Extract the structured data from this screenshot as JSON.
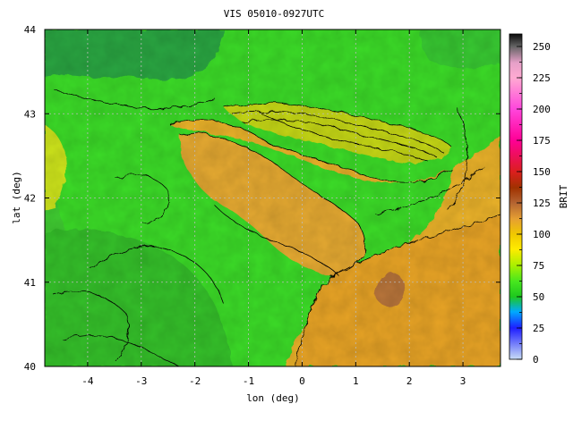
{
  "title": "VIS 05010-0927UTC",
  "xlabel": "lon (deg)",
  "ylabel": "lat (deg)",
  "colorbar_label": "BRIT",
  "chart_data": {
    "type": "heatmap",
    "title": "VIS 05010-0927UTC",
    "xlabel": "lon (deg)",
    "ylabel": "lat (deg)",
    "xlim": [
      -4.8,
      3.7
    ],
    "ylim": [
      40,
      44
    ],
    "x_ticks": [
      "-4",
      "-3",
      "-2",
      "-1",
      "0",
      "1",
      "2",
      "3"
    ],
    "x_tick_values": [
      -4,
      -3,
      -2,
      -1,
      0,
      1,
      2,
      3
    ],
    "y_ticks": [
      "40",
      "41",
      "42",
      "43",
      "44"
    ],
    "y_tick_values": [
      40,
      41,
      42,
      43,
      44
    ],
    "grid": true,
    "colorbar": {
      "label": "BRIT",
      "range": [
        0,
        260
      ],
      "ticks": [
        "0",
        "25",
        "50",
        "75",
        "100",
        "125",
        "150",
        "175",
        "200",
        "225",
        "250"
      ],
      "tick_values": [
        0,
        25,
        50,
        75,
        100,
        125,
        150,
        175,
        200,
        225,
        250
      ],
      "placement": "right",
      "colors": [
        {
          "v": 0,
          "c": "#c8dcf5"
        },
        {
          "v": 25,
          "c": "#1e1eff"
        },
        {
          "v": 38,
          "c": "#00aaff"
        },
        {
          "v": 50,
          "c": "#1ec81e"
        },
        {
          "v": 62,
          "c": "#46e61e"
        },
        {
          "v": 75,
          "c": "#aaf000"
        },
        {
          "v": 88,
          "c": "#ffeb00"
        },
        {
          "v": 100,
          "c": "#f0c800"
        },
        {
          "v": 112,
          "c": "#e6a032"
        },
        {
          "v": 125,
          "c": "#b46432"
        },
        {
          "v": 137,
          "c": "#a03200"
        },
        {
          "v": 150,
          "c": "#dc1e1e"
        },
        {
          "v": 175,
          "c": "#ff0096"
        },
        {
          "v": 200,
          "c": "#ff46dc"
        },
        {
          "v": 225,
          "c": "#ffaad2"
        },
        {
          "v": 237,
          "c": "#e6a0c8"
        },
        {
          "v": 250,
          "c": "#646464"
        },
        {
          "v": 260,
          "c": "#0a0a0a"
        }
      ]
    }
  }
}
